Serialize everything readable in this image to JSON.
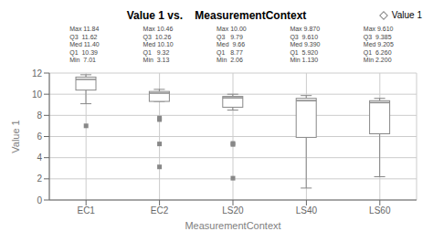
{
  "chart_data": {
    "type": "box",
    "title": "Value 1 vs.    MeasurementContext",
    "xlabel": "MeasurementContext",
    "ylabel": "Value 1",
    "categories": [
      "EC1",
      "EC2",
      "LS20",
      "LS40",
      "LS60"
    ],
    "ylim": [
      0,
      12
    ],
    "yticks": [
      0,
      2,
      4,
      6,
      8,
      10,
      12
    ],
    "grid": true,
    "legend": "upper right",
    "series": [
      {
        "name": "Value 1",
        "color": "#888888",
        "boxes": [
          {
            "q1": 10.39,
            "med": 11.4,
            "q3": 11.62,
            "whisker_low": 9.1,
            "whisker_high": 11.84,
            "outliers": [
              7.01
            ]
          },
          {
            "q1": 9.32,
            "med": 10.1,
            "q3": 10.26,
            "whisker_low": 9.32,
            "whisker_high": 10.46,
            "outliers": [
              7.75,
              7.6,
              5.3,
              3.13
            ]
          },
          {
            "q1": 8.77,
            "med": 9.66,
            "q3": 9.79,
            "whisker_low": 8.5,
            "whisker_high": 10.0,
            "outliers": [
              5.35,
              5.25,
              2.06
            ]
          },
          {
            "q1": 5.92,
            "med": 9.39,
            "q3": 9.61,
            "whisker_low": 1.13,
            "whisker_high": 9.87,
            "outliers": []
          },
          {
            "q1": 6.26,
            "med": 9.205,
            "q3": 9.385,
            "whisker_low": 2.2,
            "whisker_high": 9.61,
            "outliers": []
          }
        ]
      }
    ],
    "annotations": [
      {
        "lines": [
          "Max 11.84",
          "Q3  11.62",
          "Med 11.40",
          "Q1  10.39",
          "Min  7.01"
        ]
      },
      {
        "lines": [
          "Max 10.46",
          "Q3  10.26",
          "Med 10.10",
          "Q1   9.32",
          "Min  3.13"
        ]
      },
      {
        "lines": [
          "Max 10.00",
          "Q3   9.79",
          "Med  9.66",
          "Q1   8.77",
          "Min  2.06"
        ]
      },
      {
        "lines": [
          "Max 9.870",
          "Q3  9.610",
          "Med 9.390",
          "Q1  5.920",
          "Min 1.130"
        ]
      },
      {
        "lines": [
          "Max 9.610",
          "Q3  9.385",
          "Med 9.205",
          "Q1  6.260",
          "Min 2.200"
        ]
      }
    ]
  }
}
